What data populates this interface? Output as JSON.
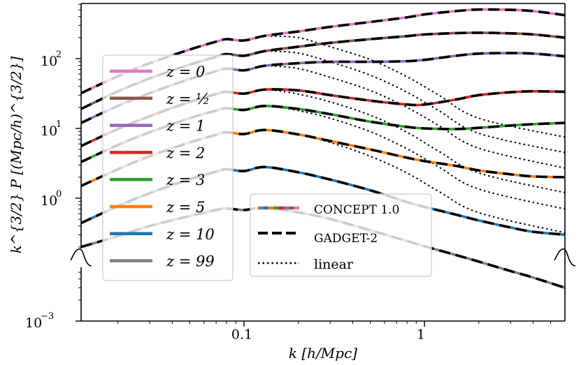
{
  "chart_data": {
    "type": "line",
    "title": "",
    "xlabel": "k [h/Mpc]",
    "ylabel": "k^{3/2} P [(Mpc/h)^{3/2}]",
    "xscale": "log",
    "yscale": "log (broken axis)",
    "xlim": [
      0.0125,
      6.0
    ],
    "x_ticks": [
      {
        "value": 0.1,
        "label": "0.1"
      },
      {
        "value": 1,
        "label": "1"
      }
    ],
    "y_ticks": [
      {
        "value": 1,
        "label": "10",
        "exp": "0"
      },
      {
        "value": 10,
        "label": "10",
        "exp": "1"
      },
      {
        "value": 100,
        "label": "10",
        "exp": "2"
      },
      {
        "value": 0.001,
        "label": "10",
        "exp": "−3"
      }
    ],
    "colors": {
      "z0": "#e377c2",
      "z_half": "#8c564b",
      "z1": "#9467bd",
      "z2": "#d62728",
      "z3": "#2ca02c",
      "z5": "#ff7f0e",
      "z10": "#1f77b4",
      "z99": "#7f7f7f"
    },
    "legend_redshift": {
      "placement": "left",
      "prefix": "z = ",
      "entries": [
        "0",
        "½",
        "1",
        "2",
        "3",
        "5",
        "10",
        "99"
      ]
    },
    "legend_method": {
      "placement": "lower-center",
      "entries": [
        "CONCEPT 1.0",
        "GADGET-2",
        "linear"
      ]
    },
    "series": [
      {
        "name": "z = 0",
        "color_key": "z0",
        "x": [
          0.0125,
          0.02,
          0.03,
          0.05,
          0.07,
          0.08,
          0.1,
          0.13,
          0.2,
          0.3,
          0.5,
          0.8,
          1.0,
          1.5,
          2.0,
          3.0,
          4.0,
          6.0
        ],
        "y": [
          32,
          56,
          86,
          135,
          175,
          190,
          182,
          212,
          245,
          285,
          335,
          390,
          430,
          480,
          505,
          500,
          480,
          420
        ],
        "linear": [
          210,
          200,
          148,
          97,
          55,
          30,
          14,
          7.5
        ]
      },
      {
        "name": "z = ½",
        "color_key": "z_half",
        "x": [
          0.0125,
          0.02,
          0.03,
          0.05,
          0.07,
          0.08,
          0.1,
          0.13,
          0.2,
          0.3,
          0.5,
          0.8,
          1.0,
          1.5,
          2.0,
          3.0,
          4.0,
          6.0
        ],
        "y": [
          19,
          34,
          52,
          82,
          106,
          116,
          110,
          128,
          148,
          168,
          190,
          210,
          222,
          232,
          235,
          230,
          222,
          200
        ],
        "linear": [
          128,
          120,
          90,
          58,
          33,
          18,
          8.5,
          4.5
        ]
      },
      {
        "name": "z = 1",
        "color_key": "z1",
        "x": [
          0.0125,
          0.02,
          0.03,
          0.05,
          0.07,
          0.08,
          0.1,
          0.13,
          0.2,
          0.3,
          0.5,
          0.8,
          1.0,
          1.5,
          2.0,
          3.0,
          4.0,
          6.0
        ],
        "y": [
          12,
          21,
          32,
          51,
          66,
          72,
          68,
          79,
          86,
          90,
          90,
          92,
          96,
          110,
          118,
          120,
          118,
          108
        ],
        "linear": [
          79,
          72,
          54,
          35,
          20,
          11,
          5.2,
          2.7
        ]
      },
      {
        "name": "z = 2",
        "color_key": "z2",
        "x": [
          0.0125,
          0.02,
          0.03,
          0.05,
          0.07,
          0.08,
          0.1,
          0.13,
          0.2,
          0.3,
          0.5,
          0.8,
          1.0,
          1.5,
          2.0,
          3.0,
          4.0,
          6.0
        ],
        "y": [
          5.6,
          9.8,
          15,
          24,
          31,
          33.5,
          31.5,
          36,
          35,
          30,
          25,
          22,
          22,
          26,
          30,
          33,
          34,
          33.5
        ],
        "linear": [
          36,
          31,
          24,
          15.5,
          8.8,
          4.7,
          2.3,
          1.2
        ]
      },
      {
        "name": "z = 3",
        "color_key": "z3",
        "x": [
          0.0125,
          0.02,
          0.03,
          0.05,
          0.07,
          0.08,
          0.1,
          0.13,
          0.2,
          0.3,
          0.5,
          0.8,
          1.0,
          1.5,
          2.0,
          3.0,
          4.0,
          6.0
        ],
        "y": [
          3.3,
          5.8,
          8.8,
          14,
          18,
          19.5,
          18.4,
          21,
          19,
          16,
          12.5,
          10.5,
          10,
          9.8,
          10.2,
          11,
          11.5,
          12
        ],
        "linear": [
          21,
          18,
          14,
          9,
          5.1,
          2.8,
          1.35,
          0.7
        ]
      },
      {
        "name": "z = 5",
        "color_key": "z5",
        "x": [
          0.0125,
          0.02,
          0.03,
          0.05,
          0.07,
          0.08,
          0.1,
          0.13,
          0.2,
          0.3,
          0.5,
          0.8,
          1.0,
          1.5,
          2.0,
          3.0,
          4.0,
          6.0
        ],
        "y": [
          1.5,
          2.6,
          4.0,
          6.3,
          8.1,
          8.8,
          8.3,
          9.5,
          8.2,
          6.6,
          5.0,
          3.8,
          3.4,
          2.9,
          2.5,
          2.2,
          2.05,
          2.0
        ],
        "linear": [
          9.5,
          8.1,
          6.3,
          4.0,
          2.3,
          1.25,
          0.62,
          0.32
        ]
      },
      {
        "name": "z = 10",
        "color_key": "z10",
        "x": [
          0.0125,
          0.02,
          0.03,
          0.05,
          0.07,
          0.08,
          0.1,
          0.13,
          0.2,
          0.3,
          0.5,
          0.8,
          1.0,
          1.5,
          2.0,
          3.0,
          4.0,
          6.0
        ],
        "y": [
          0.44,
          0.77,
          1.18,
          1.87,
          2.4,
          2.6,
          2.45,
          2.8,
          2.35,
          1.85,
          1.3,
          0.88,
          0.75,
          0.58,
          0.48,
          0.38,
          0.33,
          0.3
        ],
        "linear": null
      },
      {
        "name": "z = 99",
        "color_key": "z99",
        "x": [
          0.0125,
          0.02,
          0.03,
          0.05,
          0.07,
          0.08,
          0.1,
          0.13,
          0.2,
          0.3,
          0.5,
          0.8,
          1.0,
          1.5,
          2.0,
          3.0,
          4.0,
          6.0
        ],
        "y": [
          0.0115,
          0.0165,
          0.023,
          0.032,
          0.039,
          0.041,
          0.039,
          0.042,
          0.036,
          0.029,
          0.02,
          0.014,
          0.0118,
          0.0088,
          0.0071,
          0.0052,
          0.0042,
          0.003
        ],
        "linear": null
      }
    ]
  }
}
